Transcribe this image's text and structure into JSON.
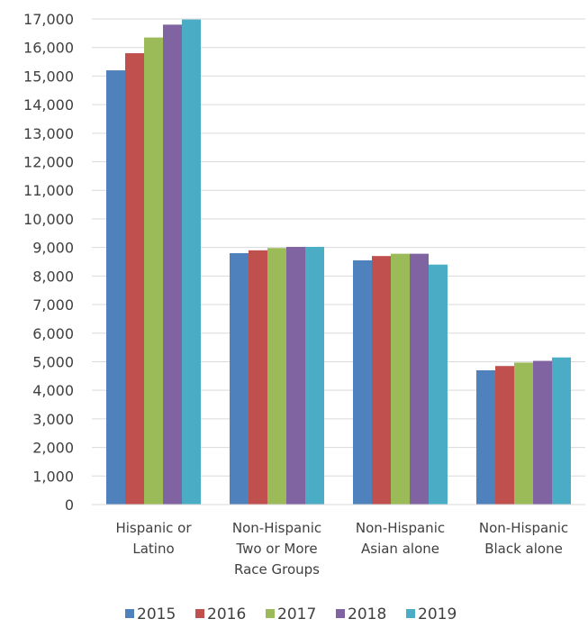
{
  "chart_data": {
    "type": "bar",
    "title": "",
    "xlabel": "",
    "ylabel": "",
    "ylim": [
      0,
      17000
    ],
    "y_ticks": [
      "0",
      "1,000",
      "2,000",
      "3,000",
      "4,000",
      "5,000",
      "6,000",
      "7,000",
      "8,000",
      "9,000",
      "10,000",
      "11,000",
      "12,000",
      "13,000",
      "14,000",
      "15,000",
      "16,000",
      "17,000"
    ],
    "categories": [
      [
        "Hispanic or",
        "Latino"
      ],
      [
        "Non-Hispanic",
        "Two or More",
        "Race Groups"
      ],
      [
        "Non-Hispanic",
        "Asian alone"
      ],
      [
        "Non-Hispanic",
        "Black alone"
      ]
    ],
    "series": [
      {
        "name": "2015",
        "color": "#4F81BD",
        "values": [
          15200,
          8800,
          8550,
          4700
        ]
      },
      {
        "name": "2016",
        "color": "#C0504D",
        "values": [
          15800,
          8900,
          8700,
          4850
        ]
      },
      {
        "name": "2017",
        "color": "#9BBB59",
        "values": [
          16350,
          8980,
          8780,
          4970
        ]
      },
      {
        "name": "2018",
        "color": "#8064A2",
        "values": [
          16800,
          9020,
          8780,
          5030
        ]
      },
      {
        "name": "2019",
        "color": "#4BACC6",
        "values": [
          16980,
          9020,
          8400,
          5150
        ]
      }
    ],
    "grid": true,
    "legend_position": "bottom"
  }
}
